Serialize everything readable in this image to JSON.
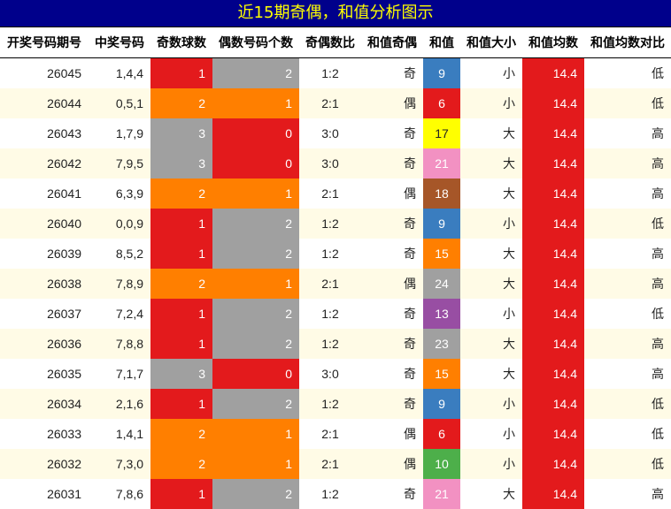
{
  "title": "近15期奇偶，和值分析图示",
  "headers": [
    "开奖号码期号",
    "中奖号码",
    "奇数球数",
    "偶数号码个数",
    "奇偶数比",
    "和值奇偶",
    "和值",
    "和值大小",
    "和值均数",
    "和值均数对比"
  ],
  "colors": {
    "red": "#e31a1c",
    "gray": "#a0a0a0",
    "orange": "#ff7f00",
    "blue": "#3a7dbf",
    "yellow": "#ffff00",
    "pink": "#f291c2",
    "brown": "#a65628",
    "purple": "#984ea3",
    "green": "#4daf4a",
    "title_bg": "#00008b",
    "title_fg": "#ffff00"
  },
  "rows": [
    {
      "period": "26045",
      "numbers": "1,4,4",
      "odd_count": "1",
      "even_count": "2",
      "ratio": "1:2",
      "sum_parity": "奇",
      "sum": "9",
      "sum_color": "blue",
      "size": "小",
      "avg": "14.4",
      "compare": "低"
    },
    {
      "period": "26044",
      "numbers": "0,5,1",
      "odd_count": "2",
      "even_count": "1",
      "ratio": "2:1",
      "sum_parity": "偶",
      "sum": "6",
      "sum_color": "red",
      "size": "小",
      "avg": "14.4",
      "compare": "低"
    },
    {
      "period": "26043",
      "numbers": "1,7,9",
      "odd_count": "3",
      "even_count": "0",
      "ratio": "3:0",
      "sum_parity": "奇",
      "sum": "17",
      "sum_color": "yellow",
      "size": "大",
      "avg": "14.4",
      "compare": "高"
    },
    {
      "period": "26042",
      "numbers": "7,9,5",
      "odd_count": "3",
      "even_count": "0",
      "ratio": "3:0",
      "sum_parity": "奇",
      "sum": "21",
      "sum_color": "pink",
      "size": "大",
      "avg": "14.4",
      "compare": "高"
    },
    {
      "period": "26041",
      "numbers": "6,3,9",
      "odd_count": "2",
      "even_count": "1",
      "ratio": "2:1",
      "sum_parity": "偶",
      "sum": "18",
      "sum_color": "brown",
      "size": "大",
      "avg": "14.4",
      "compare": "高"
    },
    {
      "period": "26040",
      "numbers": "0,0,9",
      "odd_count": "1",
      "even_count": "2",
      "ratio": "1:2",
      "sum_parity": "奇",
      "sum": "9",
      "sum_color": "blue",
      "size": "小",
      "avg": "14.4",
      "compare": "低"
    },
    {
      "period": "26039",
      "numbers": "8,5,2",
      "odd_count": "1",
      "even_count": "2",
      "ratio": "1:2",
      "sum_parity": "奇",
      "sum": "15",
      "sum_color": "orange",
      "size": "大",
      "avg": "14.4",
      "compare": "高"
    },
    {
      "period": "26038",
      "numbers": "7,8,9",
      "odd_count": "2",
      "even_count": "1",
      "ratio": "2:1",
      "sum_parity": "偶",
      "sum": "24",
      "sum_color": "gray",
      "size": "大",
      "avg": "14.4",
      "compare": "高"
    },
    {
      "period": "26037",
      "numbers": "7,2,4",
      "odd_count": "1",
      "even_count": "2",
      "ratio": "1:2",
      "sum_parity": "奇",
      "sum": "13",
      "sum_color": "purple",
      "size": "小",
      "avg": "14.4",
      "compare": "低"
    },
    {
      "period": "26036",
      "numbers": "7,8,8",
      "odd_count": "1",
      "even_count": "2",
      "ratio": "1:2",
      "sum_parity": "奇",
      "sum": "23",
      "sum_color": "gray",
      "size": "大",
      "avg": "14.4",
      "compare": "高"
    },
    {
      "period": "26035",
      "numbers": "7,1,7",
      "odd_count": "3",
      "even_count": "0",
      "ratio": "3:0",
      "sum_parity": "奇",
      "sum": "15",
      "sum_color": "orange",
      "size": "大",
      "avg": "14.4",
      "compare": "高"
    },
    {
      "period": "26034",
      "numbers": "2,1,6",
      "odd_count": "1",
      "even_count": "2",
      "ratio": "1:2",
      "sum_parity": "奇",
      "sum": "9",
      "sum_color": "blue",
      "size": "小",
      "avg": "14.4",
      "compare": "低"
    },
    {
      "period": "26033",
      "numbers": "1,4,1",
      "odd_count": "2",
      "even_count": "1",
      "ratio": "2:1",
      "sum_parity": "偶",
      "sum": "6",
      "sum_color": "red",
      "size": "小",
      "avg": "14.4",
      "compare": "低"
    },
    {
      "period": "26032",
      "numbers": "7,3,0",
      "odd_count": "2",
      "even_count": "1",
      "ratio": "2:1",
      "sum_parity": "偶",
      "sum": "10",
      "sum_color": "green",
      "size": "小",
      "avg": "14.4",
      "compare": "低"
    },
    {
      "period": "26031",
      "numbers": "7,8,6",
      "odd_count": "1",
      "even_count": "2",
      "ratio": "1:2",
      "sum_parity": "奇",
      "sum": "21",
      "sum_color": "pink",
      "size": "大",
      "avg": "14.4",
      "compare": "高"
    }
  ]
}
